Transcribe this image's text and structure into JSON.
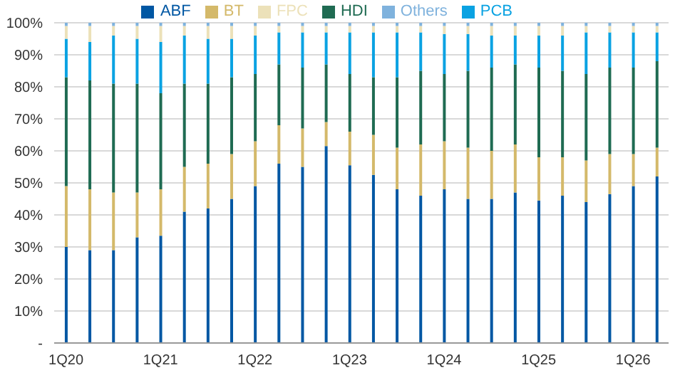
{
  "chart_data": {
    "type": "bar",
    "stacked": true,
    "categories": [
      "1Q20",
      null,
      null,
      null,
      "1Q21",
      null,
      null,
      null,
      "1Q22",
      null,
      null,
      null,
      "1Q23",
      null,
      null,
      null,
      "1Q24",
      null,
      null,
      null,
      "1Q25",
      null,
      null,
      null,
      "1Q26",
      null
    ],
    "series": [
      {
        "name": "ABF",
        "color": "#0057a3",
        "values": [
          30,
          29,
          29,
          33,
          33.5,
          41,
          42,
          45,
          49,
          56,
          55,
          61.5,
          55.5,
          52.5,
          48,
          46,
          48,
          45,
          45,
          47,
          44.5,
          46,
          44,
          46.5,
          49,
          52
        ]
      },
      {
        "name": "BT",
        "color": "#d4b96a",
        "values": [
          19,
          19,
          18,
          14,
          14.5,
          14,
          14,
          14,
          14,
          12,
          12,
          7.5,
          10.5,
          12.5,
          13,
          16,
          15,
          16,
          15,
          15,
          13.5,
          12,
          13,
          12.5,
          10,
          9
        ]
      },
      {
        "name": "HDI",
        "color": "#1f6b52",
        "values": [
          34,
          34,
          34,
          34,
          30,
          26,
          25,
          24,
          21,
          19,
          19,
          18,
          18,
          18,
          22,
          23,
          21,
          24,
          26,
          25,
          28,
          27,
          27,
          27,
          27,
          27
        ]
      },
      {
        "name": "PCB",
        "color": "#0aa2e2",
        "values": [
          12,
          12,
          15,
          14,
          16,
          15,
          14,
          12,
          12,
          10,
          11,
          10,
          13,
          14,
          14,
          12,
          12.5,
          11.5,
          10,
          9,
          10,
          11,
          13,
          11,
          11,
          9
        ]
      },
      {
        "name": "FPC",
        "color": "#ece1b9",
        "values": [
          4,
          5,
          3,
          4,
          5,
          3,
          4,
          4,
          3,
          2,
          2,
          2,
          2,
          2,
          2,
          2,
          2.5,
          2.5,
          3,
          3,
          3,
          3,
          2,
          2,
          2,
          2
        ]
      },
      {
        "name": "Others",
        "color": "#7fb2dd",
        "values": [
          1,
          1,
          1,
          1,
          1,
          1,
          1,
          1,
          1,
          1,
          1,
          1,
          1,
          1,
          1,
          1,
          1,
          1,
          1,
          1,
          1,
          1,
          1,
          1,
          1,
          1
        ]
      }
    ],
    "ylim": [
      0,
      100
    ],
    "yticks": [
      {
        "value": 0,
        "label": "-"
      },
      {
        "value": 10,
        "label": "10%"
      },
      {
        "value": 20,
        "label": "20%"
      },
      {
        "value": 30,
        "label": "30%"
      },
      {
        "value": 40,
        "label": "40%"
      },
      {
        "value": 50,
        "label": "50%"
      },
      {
        "value": 60,
        "label": "60%"
      },
      {
        "value": 70,
        "label": "70%"
      },
      {
        "value": 80,
        "label": "80%"
      },
      {
        "value": 90,
        "label": "90%"
      },
      {
        "value": 100,
        "label": "100%"
      }
    ],
    "grid": "y",
    "legend": "top"
  }
}
